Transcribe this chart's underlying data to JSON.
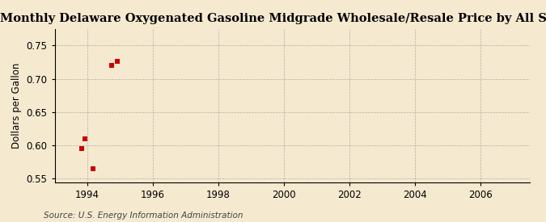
{
  "title": "Monthly Delaware Oxygenated Gasoline Midgrade Wholesale/Resale Price by All Sellers",
  "ylabel": "Dollars per Gallon",
  "source": "Source: U.S. Energy Information Administration",
  "xlim": [
    1993.0,
    2007.5
  ],
  "ylim": [
    0.545,
    0.775
  ],
  "xticks": [
    1994,
    1996,
    1998,
    2000,
    2002,
    2004,
    2006
  ],
  "yticks": [
    0.55,
    0.6,
    0.65,
    0.7,
    0.75
  ],
  "data_x": [
    1993.83,
    1993.92,
    1994.17,
    1994.75,
    1994.92
  ],
  "data_y": [
    0.595,
    0.61,
    0.565,
    0.72,
    0.726
  ],
  "marker_color": "#cc0000",
  "marker_size": 16,
  "background_color": "#f5e9cf",
  "grid_color": "#aaaaaa",
  "title_fontsize": 10.5,
  "label_fontsize": 8.5,
  "tick_fontsize": 8.5,
  "source_fontsize": 7.5
}
